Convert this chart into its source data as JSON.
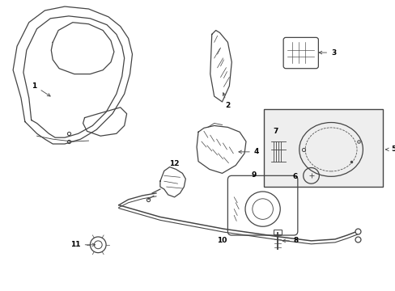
{
  "background_color": "#ffffff",
  "line_color": "#444444",
  "label_color": "#000000",
  "fig_width": 4.89,
  "fig_height": 3.6,
  "dpi": 100
}
